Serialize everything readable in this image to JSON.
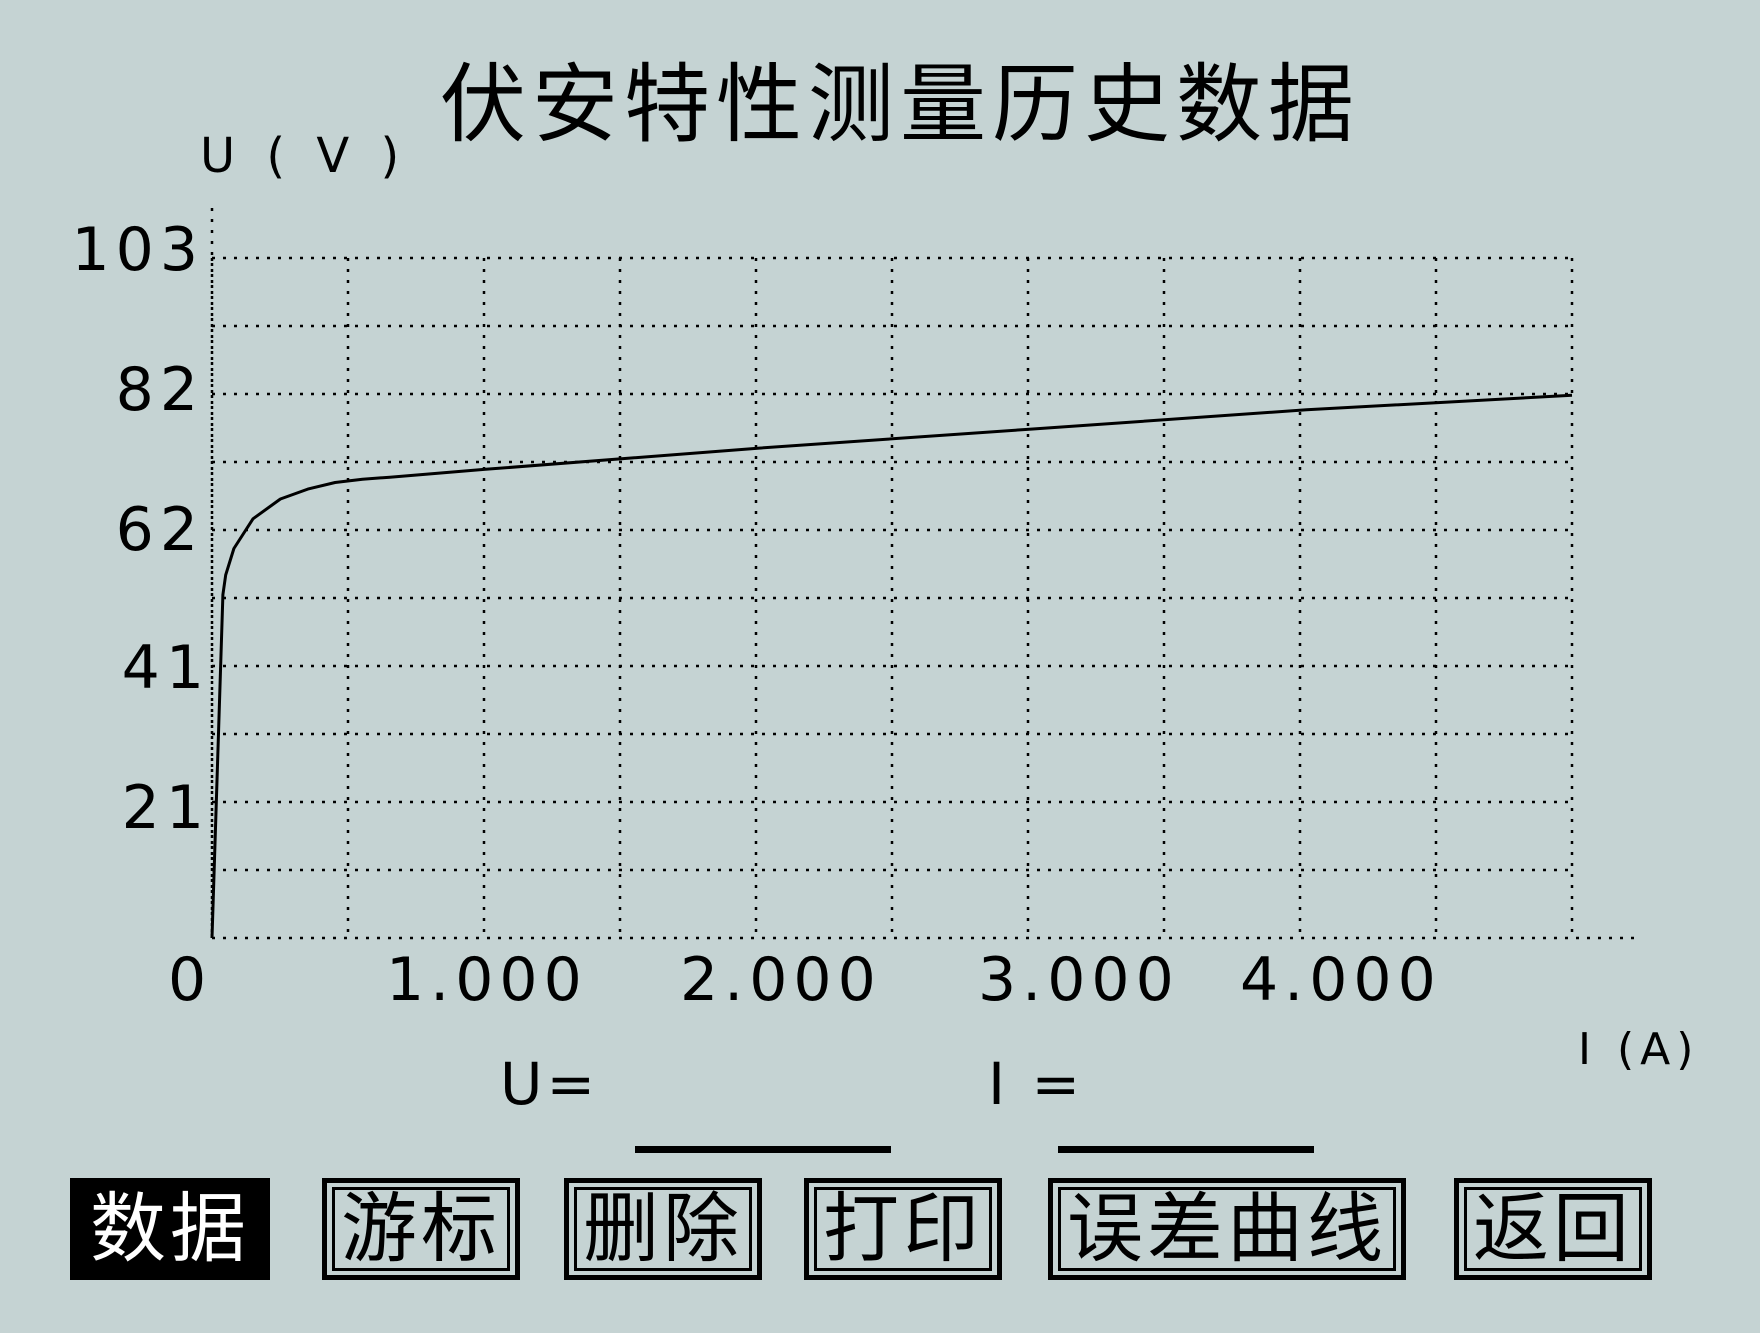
{
  "title": "伏安特性测量历史数据",
  "chart_data": {
    "type": "line",
    "title": "伏安特性测量历史数据",
    "xlabel": "I (A)",
    "ylabel": "U ( V )",
    "xlim": [
      0,
      4.97
    ],
    "ylim": [
      0,
      103
    ],
    "x_ticks": [
      "0",
      "1.000",
      "2.000",
      "3.000",
      "4.000"
    ],
    "x_tick_values": [
      0,
      1.0,
      2.0,
      3.0,
      4.0
    ],
    "y_ticks": [
      "103",
      "82",
      "62",
      "41",
      "21"
    ],
    "y_tick_values": [
      103,
      82,
      62,
      41,
      21
    ],
    "grid": true,
    "series": [
      {
        "x": [
          0.0,
          0.04,
          0.05,
          0.08,
          0.15,
          0.25,
          0.35,
          0.45,
          0.55,
          0.65,
          1.0,
          2.0,
          3.0,
          4.0,
          4.97
        ],
        "y": [
          0.0,
          52.0,
          55.0,
          59.0,
          63.5,
          66.5,
          68.0,
          69.0,
          69.5,
          69.8,
          71.0,
          74.2,
          77.1,
          80.0,
          82.2
        ]
      }
    ]
  },
  "readout": {
    "u_label": "U=",
    "u_value": "",
    "i_label": "I =",
    "i_value": ""
  },
  "buttons": [
    {
      "label": "数据",
      "active": true
    },
    {
      "label": "游标",
      "active": false
    },
    {
      "label": "删除",
      "active": false
    },
    {
      "label": "打印",
      "active": false
    },
    {
      "label": "误差曲线",
      "active": false
    },
    {
      "label": "返回",
      "active": false
    }
  ]
}
